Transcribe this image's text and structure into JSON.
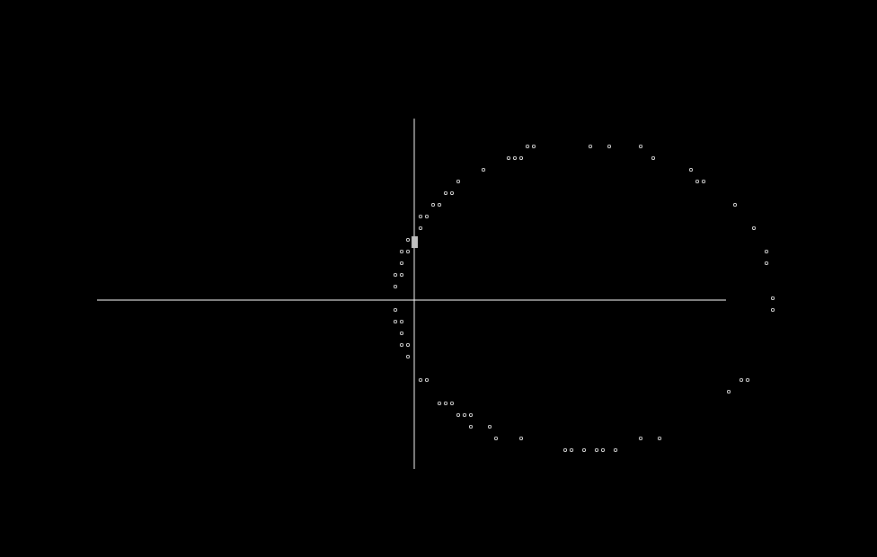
{
  "colors": {
    "background": "#000000",
    "axis": "#ffffff",
    "marker": "#ffffff",
    "cursor": "#c0c0c0"
  },
  "cursor": {
    "icon": "text-cursor-block"
  }
}
